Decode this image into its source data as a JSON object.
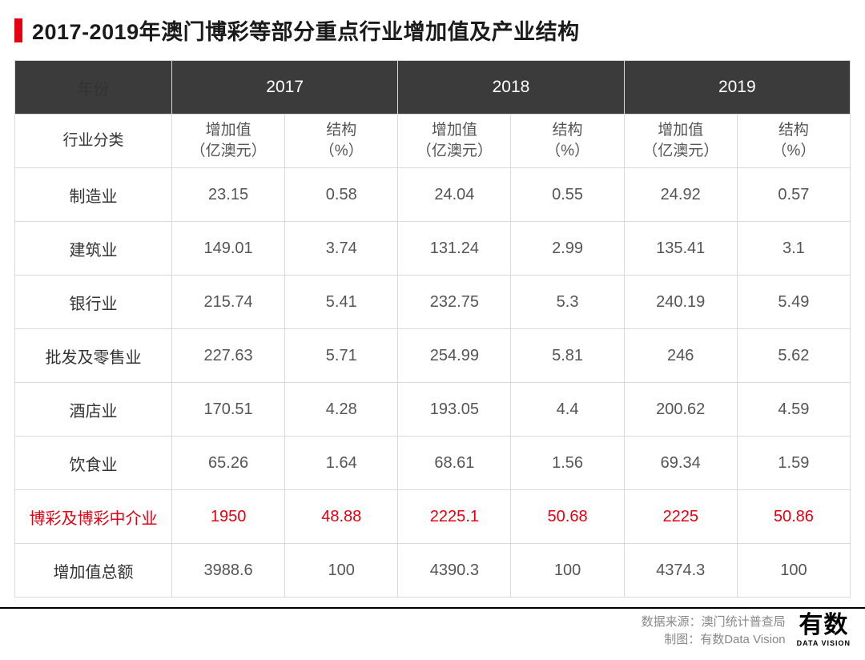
{
  "title": "2017-2019年澳门博彩等部分重点行业增加值及产业结构",
  "accent_color": "#e60012",
  "header_bg": "#3b3b3b",
  "border_color": "#d9d9d9",
  "years": [
    "2017",
    "2018",
    "2019"
  ],
  "col_year_label": "年份",
  "col_category_label": "行业分类",
  "sub_value_label": "增加值\n（亿澳元）",
  "sub_pct_label": "结构\n（%）",
  "rows": [
    {
      "name": "制造业",
      "v17": "23.15",
      "p17": "0.58",
      "v18": "24.04",
      "p18": "0.55",
      "v19": "24.92",
      "p19": "0.57",
      "hl": false
    },
    {
      "name": "建筑业",
      "v17": "149.01",
      "p17": "3.74",
      "v18": "131.24",
      "p18": "2.99",
      "v19": "135.41",
      "p19": "3.1",
      "hl": false
    },
    {
      "name": "银行业",
      "v17": "215.74",
      "p17": "5.41",
      "v18": "232.75",
      "p18": "5.3",
      "v19": "240.19",
      "p19": "5.49",
      "hl": false
    },
    {
      "name": "批发及零售业",
      "v17": "227.63",
      "p17": "5.71",
      "v18": "254.99",
      "p18": "5.81",
      "v19": "246",
      "p19": "5.62",
      "hl": false
    },
    {
      "name": "酒店业",
      "v17": "170.51",
      "p17": "4.28",
      "v18": "193.05",
      "p18": "4.4",
      "v19": "200.62",
      "p19": "4.59",
      "hl": false
    },
    {
      "name": "饮食业",
      "v17": "65.26",
      "p17": "1.64",
      "v18": "68.61",
      "p18": "1.56",
      "v19": "69.34",
      "p19": "1.59",
      "hl": false
    },
    {
      "name": "博彩及博彩中介业",
      "v17": "1950",
      "p17": "48.88",
      "v18": "2225.1",
      "p18": "50.68",
      "v19": "2225",
      "p19": "50.86",
      "hl": true
    },
    {
      "name": "增加值总额",
      "v17": "3988.6",
      "p17": "100",
      "v18": "4390.3",
      "p18": "100",
      "v19": "4374.3",
      "p19": "100",
      "hl": false
    }
  ],
  "footer": {
    "source_label": "数据来源：",
    "source_value": "澳门统计普查局",
    "maker_label": "制图：",
    "maker_value": "有数Data Vision"
  },
  "logo": {
    "main": "有数",
    "sub": "DATA VISION"
  }
}
